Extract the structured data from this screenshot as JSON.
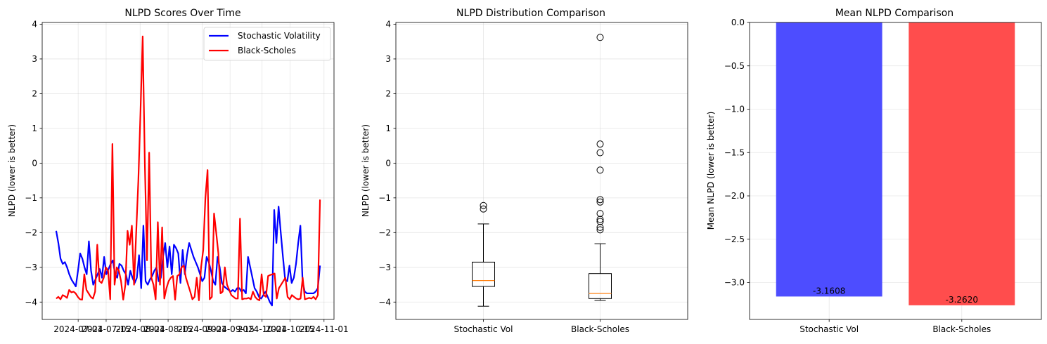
{
  "chart_data": [
    {
      "type": "line",
      "title": "NLPD Scores Over Time",
      "ylabel": "NLPD (lower is better)",
      "xlabel": "",
      "x_start": "2024-06-20",
      "x_end": "2024-10-30",
      "xlim": [
        "2024-06-13",
        "2024-11-06"
      ],
      "ylim": [
        -4.5,
        4.05
      ],
      "x_ticks": [
        "2024-07-01",
        "2024-07-15",
        "2024-08-01",
        "2024-08-15",
        "2024-09-01",
        "2024-09-15",
        "2024-10-01",
        "2024-10-15",
        "2024-11-01"
      ],
      "y_ticks": [
        4,
        3,
        2,
        1,
        0,
        -1,
        -2,
        -3,
        -4
      ],
      "y_tick_labels": [
        "4",
        "3",
        "2",
        "1",
        "0",
        "−1",
        "−2",
        "−3",
        "−4"
      ],
      "grid": true,
      "legend": "upper-right",
      "series": [
        {
          "name": "Stochastic Volatility",
          "color": "#0000ff",
          "values": [
            -1.95,
            -2.3,
            -2.75,
            -2.9,
            -2.85,
            -3.0,
            -3.2,
            -3.35,
            -3.45,
            -3.55,
            -3.1,
            -2.6,
            -2.75,
            -3.0,
            -3.2,
            -2.25,
            -3.1,
            -3.5,
            -3.35,
            -3.2,
            -3.05,
            -3.3,
            -2.7,
            -3.2,
            -3.05,
            -2.9,
            -2.8,
            -3.2,
            -3.3,
            -2.9,
            -2.95,
            -3.1,
            -3.2,
            -3.5,
            -3.1,
            -3.3,
            -3.45,
            -3.3,
            -2.65,
            -3.6,
            -1.8,
            -3.4,
            -3.5,
            -3.35,
            -3.25,
            -3.1,
            -3.0,
            -3.4,
            -3.3,
            -2.7,
            -2.3,
            -3.0,
            -2.4,
            -3.2,
            -2.35,
            -2.45,
            -2.6,
            -3.45,
            -2.5,
            -3.2,
            -2.65,
            -2.3,
            -2.5,
            -2.7,
            -2.85,
            -3.0,
            -3.2,
            -3.4,
            -3.3,
            -2.7,
            -2.85,
            -3.1,
            -3.4,
            -3.5,
            -2.7,
            -3.0,
            -3.45,
            -3.55,
            -3.6,
            -3.65,
            -3.7,
            -3.65,
            -3.7,
            -3.6,
            -3.6,
            -3.7,
            -3.65,
            -3.75,
            -2.7,
            -3.0,
            -3.3,
            -3.6,
            -3.7,
            -3.85,
            -3.9,
            -3.8,
            -3.7,
            -3.85,
            -4.0,
            -4.1,
            -1.35,
            -2.3,
            -1.25,
            -2.0,
            -2.7,
            -3.35,
            -3.4,
            -2.95,
            -3.45,
            -3.3,
            -2.9,
            -2.3,
            -1.8,
            -3.4,
            -3.7,
            -3.75,
            -3.75,
            -3.75,
            -3.75,
            -3.7,
            -3.6,
            -2.95
          ]
        },
        {
          "name": "Black-Scholes",
          "color": "#ff0000",
          "values": [
            -3.9,
            -3.85,
            -3.92,
            -3.8,
            -3.83,
            -3.88,
            -3.65,
            -3.72,
            -3.7,
            -3.75,
            -3.85,
            -3.92,
            -3.93,
            -3.2,
            -3.65,
            -3.75,
            -3.85,
            -3.9,
            -3.7,
            -2.35,
            -3.4,
            -3.45,
            -3.3,
            -3.0,
            -3.1,
            -3.92,
            0.55,
            -3.5,
            -3.0,
            -3.1,
            -3.4,
            -3.93,
            -3.5,
            -1.95,
            -2.35,
            -1.8,
            -3.5,
            -2.0,
            -0.5,
            1.5,
            3.65,
            0.0,
            -2.8,
            0.3,
            -3.3,
            -3.5,
            -3.92,
            -1.7,
            -3.5,
            -1.85,
            -3.9,
            -3.6,
            -3.4,
            -3.3,
            -3.25,
            -3.93,
            -3.25,
            -3.2,
            -3.0,
            -2.95,
            -3.3,
            -3.5,
            -3.7,
            -3.92,
            -3.85,
            -3.3,
            -3.95,
            -3.0,
            -2.5,
            -1.0,
            -0.2,
            -3.92,
            -3.85,
            -1.45,
            -2.0,
            -2.6,
            -3.75,
            -3.7,
            -3.0,
            -3.5,
            -3.65,
            -3.8,
            -3.85,
            -3.9,
            -3.9,
            -1.6,
            -3.92,
            -3.9,
            -3.9,
            -3.88,
            -3.92,
            -3.7,
            -3.85,
            -3.92,
            -3.95,
            -3.2,
            -3.8,
            -3.85,
            -3.25,
            -3.22,
            -3.2,
            -3.18,
            -3.9,
            -3.6,
            -3.5,
            -3.4,
            -3.3,
            -3.85,
            -3.92,
            -3.8,
            -3.85,
            -3.9,
            -3.92,
            -3.9,
            -3.3,
            -3.92,
            -3.9,
            -3.88,
            -3.9,
            -3.85,
            -3.92,
            -3.8,
            -1.05
          ]
        }
      ]
    },
    {
      "type": "box",
      "title": "NLPD Distribution Comparison",
      "ylabel": "NLPD (lower is better)",
      "xlabel": "",
      "categories": [
        "Stochastic Vol",
        "Black-Scholes"
      ],
      "ylim": [
        -4.5,
        4.05
      ],
      "y_ticks": [
        4,
        3,
        2,
        1,
        0,
        -1,
        -2,
        -3,
        -4
      ],
      "y_tick_labels": [
        "4",
        "3",
        "2",
        "1",
        "0",
        "−1",
        "−2",
        "−3",
        "−4"
      ],
      "grid": true,
      "boxes": [
        {
          "name": "Stochastic Vol",
          "whisker_low": -4.12,
          "q1": -3.55,
          "median": -3.38,
          "q3": -2.85,
          "whisker_high": -1.75,
          "outliers": [
            -1.22,
            -1.32
          ]
        },
        {
          "name": "Black-Scholes",
          "whisker_low": -3.95,
          "q1": -3.9,
          "median": -3.75,
          "q3": -3.18,
          "whisker_high": -2.32,
          "outliers": [
            3.62,
            0.55,
            0.3,
            -0.2,
            -1.05,
            -1.12,
            -1.45,
            -1.62,
            -1.68,
            -1.85,
            -1.92
          ]
        }
      ],
      "median_color": "#ff7f0e"
    },
    {
      "type": "bar",
      "title": "Mean NLPD Comparison",
      "ylabel": "Mean NLPD (lower is better)",
      "xlabel": "",
      "categories": [
        "Stochastic Vol",
        "Black-Scholes"
      ],
      "values": [
        -3.1608,
        -3.262
      ],
      "value_labels": [
        "-3.1608",
        "-3.2620"
      ],
      "colors": [
        "#4d4dff",
        "#ff4d4d"
      ],
      "ylim": [
        -3.425,
        0.0
      ],
      "y_ticks": [
        0.0,
        -0.5,
        -1.0,
        -1.5,
        -2.0,
        -2.5,
        -3.0
      ],
      "y_tick_labels": [
        "0.0",
        "−0.5",
        "−1.0",
        "−1.5",
        "−2.0",
        "−2.5",
        "−3.0"
      ],
      "grid": true
    }
  ]
}
